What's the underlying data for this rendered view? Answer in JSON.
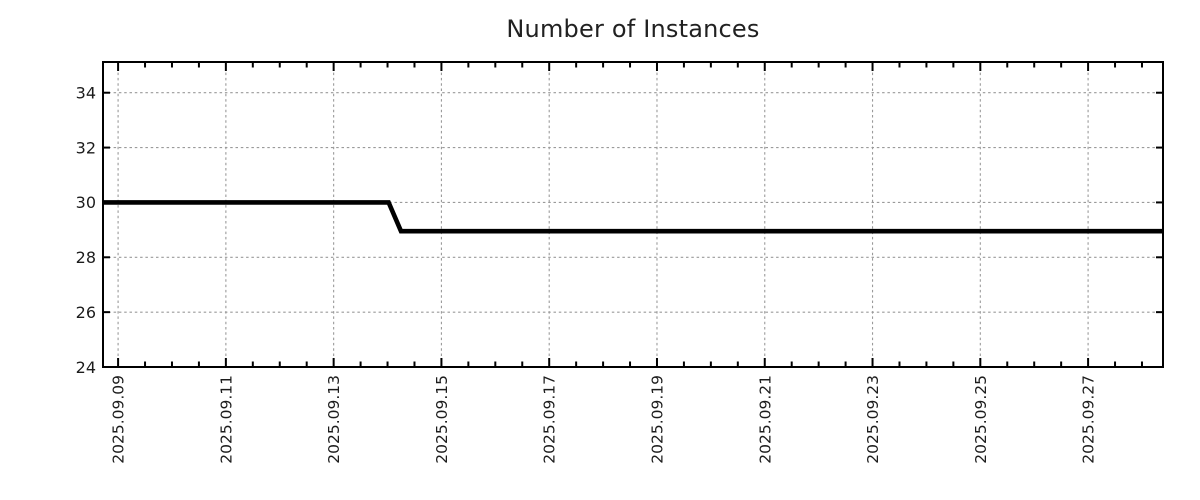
{
  "page": {
    "background": "#ffffff"
  },
  "chart_data": {
    "type": "line",
    "title": "Number of Instances",
    "legend": false,
    "grid": true,
    "x_axis": {
      "unit": "days relative to 2025.09.09 00:00",
      "range_days": [
        -0.28,
        19.39
      ],
      "minor_tick_step_days": 0.5,
      "major_ticks": [
        {
          "day": 0,
          "label": "2025.09.09"
        },
        {
          "day": 2,
          "label": "2025.09.11"
        },
        {
          "day": 4,
          "label": "2025.09.13"
        },
        {
          "day": 6,
          "label": "2025.09.15"
        },
        {
          "day": 8,
          "label": "2025.09.17"
        },
        {
          "day": 10,
          "label": "2025.09.19"
        },
        {
          "day": 12,
          "label": "2025.09.21"
        },
        {
          "day": 14,
          "label": "2025.09.23"
        },
        {
          "day": 16,
          "label": "2025.09.25"
        },
        {
          "day": 18,
          "label": "2025.09.27"
        }
      ],
      "gridlines_at_major_ticks": true
    },
    "y_axis": {
      "range": [
        24,
        35.12
      ],
      "ticks": [
        24,
        26,
        28,
        30,
        32,
        34
      ],
      "gridlines_at_ticks": true
    },
    "series": [
      {
        "name": "instances",
        "color": "#000000",
        "line_width": 4.6,
        "points": [
          [
            -0.28,
            30
          ],
          [
            5.02,
            30
          ],
          [
            5.25,
            28.95
          ],
          [
            19.39,
            28.95
          ]
        ]
      }
    ],
    "colors": {
      "grid": "#9a9a9a",
      "frame": "#000000",
      "tick": "#000000",
      "text": "#1c1c1c",
      "title": "#212121"
    }
  }
}
